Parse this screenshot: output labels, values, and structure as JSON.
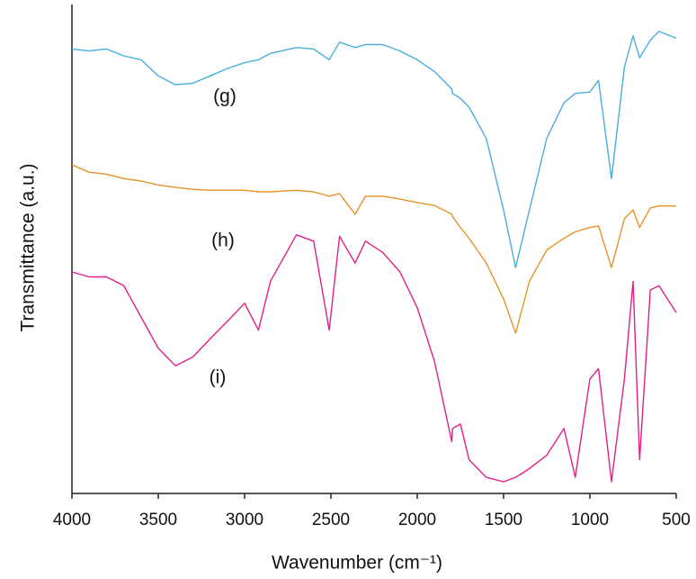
{
  "chart_data": {
    "type": "line",
    "xlabel": "Wavenumber (cm⁻¹)",
    "ylabel": "Transmittance (a.u.)",
    "x": [
      4000,
      3900,
      3800,
      3700,
      3600,
      3500,
      3400,
      3300,
      3200,
      3100,
      3000,
      2920,
      2850,
      2700,
      2600,
      2510,
      2450,
      2360,
      2300,
      2200,
      2100,
      2000,
      1900,
      1800,
      1795,
      1750,
      1700,
      1600,
      1500,
      1430,
      1350,
      1250,
      1150,
      1085,
      1000,
      950,
      875,
      800,
      750,
      712,
      650,
      600,
      500
    ],
    "series": [
      {
        "name": "(g)",
        "color": "#4aaee0",
        "values": [
          90.9,
          90.5,
          90.9,
          89.5,
          88.7,
          85.4,
          83.6,
          83.9,
          85.4,
          86.9,
          88.1,
          88.7,
          90.0,
          91.2,
          90.9,
          88.7,
          92.3,
          91.2,
          91.8,
          91.8,
          90.5,
          88.7,
          86.3,
          82.7,
          81.8,
          80.8,
          79.0,
          72.6,
          58.0,
          46.2,
          58.0,
          72.6,
          79.9,
          81.8,
          82.1,
          84.5,
          64.4,
          87.2,
          93.6,
          89.1,
          92.7,
          94.5,
          93.1
        ]
      },
      {
        "name": "(h)",
        "color": "#e8922a",
        "values": [
          67.2,
          65.7,
          65.3,
          64.4,
          63.9,
          63.1,
          62.6,
          62.2,
          62.0,
          62.0,
          62.0,
          61.7,
          61.7,
          62.0,
          61.7,
          60.8,
          61.3,
          57.1,
          60.8,
          60.8,
          60.2,
          59.5,
          58.9,
          57.1,
          56.6,
          54.4,
          52.2,
          47.1,
          39.8,
          32.8,
          43.4,
          49.8,
          52.2,
          53.5,
          54.4,
          54.7,
          46.2,
          56.2,
          58.0,
          54.4,
          58.4,
          58.8,
          58.8
        ]
      },
      {
        "name": "(i)",
        "color": "#e0208a",
        "values": [
          45.3,
          44.3,
          44.3,
          42.5,
          36.1,
          29.7,
          26.1,
          27.9,
          31.6,
          35.2,
          38.9,
          33.4,
          43.4,
          52.9,
          51.6,
          33.4,
          52.6,
          47.1,
          51.6,
          49.3,
          45.3,
          38.0,
          27.0,
          10.6,
          13.3,
          14.2,
          6.9,
          3.3,
          2.4,
          3.3,
          5.1,
          7.8,
          13.3,
          3.3,
          23.4,
          25.5,
          2.4,
          23.4,
          43.4,
          6.9,
          41.6,
          42.5,
          37.0
        ]
      }
    ],
    "xlim": [
      4000,
      500
    ],
    "xticks": [
      4000,
      3500,
      3000,
      2500,
      2000,
      1500,
      1000,
      500
    ],
    "ylim": [
      0,
      100
    ],
    "grid": false
  }
}
